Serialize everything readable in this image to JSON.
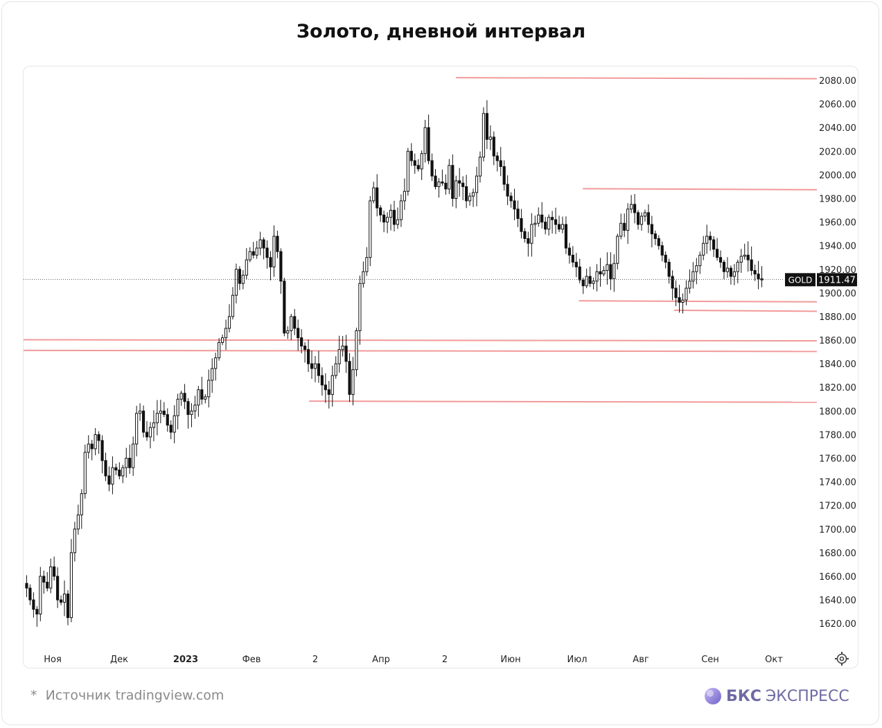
{
  "title": "Золото, дневной интервал",
  "footer": {
    "star": "*",
    "source": "Источник tradingview.com"
  },
  "brand": {
    "name_bold": "БКС",
    "name_light": "ЭКСПРЕСС"
  },
  "chart_data": {
    "type": "candlestick",
    "symbol": "GOLD",
    "last_price": "1911.47",
    "y_range": [
      1606,
      2090
    ],
    "y_ticks": [
      1620,
      1640,
      1660,
      1680,
      1700,
      1720,
      1740,
      1760,
      1780,
      1800,
      1820,
      1840,
      1860,
      1880,
      1900,
      1920,
      1940,
      1960,
      1980,
      2000,
      2020,
      2040,
      2060,
      2080
    ],
    "y_tick_labels": [
      "1620.00",
      "1640.00",
      "1660.00",
      "1680.00",
      "1700.00",
      "1720.00",
      "1740.00",
      "1760.00",
      "1780.00",
      "1800.00",
      "1820.00",
      "1840.00",
      "1860.00",
      "1880.00",
      "1900.00",
      "1920.00",
      "1940.00",
      "1960.00",
      "1980.00",
      "2000.00",
      "2020.00",
      "2040.00",
      "2060.00",
      "2080.00"
    ],
    "x_labels": [
      {
        "text": "Ноя",
        "bold": false
      },
      {
        "text": "Дек",
        "bold": false
      },
      {
        "text": "2023",
        "bold": true
      },
      {
        "text": "Фев",
        "bold": false
      },
      {
        "text": "2",
        "bold": false
      },
      {
        "text": "Апр",
        "bold": false
      },
      {
        "text": "2",
        "bold": false
      },
      {
        "text": "Июн",
        "bold": false
      },
      {
        "text": "Июл",
        "bold": false
      },
      {
        "text": "Авг",
        "bold": false
      },
      {
        "text": "Сен",
        "bold": false
      },
      {
        "text": "Окт",
        "bold": false
      }
    ],
    "close_path": [
      1650,
      1640,
      1632,
      1628,
      1660,
      1655,
      1650,
      1668,
      1660,
      1640,
      1638,
      1645,
      1625,
      1680,
      1700,
      1712,
      1730,
      1765,
      1772,
      1768,
      1780,
      1775,
      1758,
      1745,
      1738,
      1752,
      1750,
      1745,
      1752,
      1760,
      1752,
      1772,
      1798,
      1800,
      1782,
      1778,
      1786,
      1790,
      1798,
      1800,
      1797,
      1788,
      1782,
      1796,
      1810,
      1815,
      1808,
      1797,
      1800,
      1805,
      1818,
      1810,
      1812,
      1826,
      1836,
      1845,
      1858,
      1862,
      1870,
      1880,
      1898,
      1920,
      1908,
      1915,
      1928,
      1935,
      1932,
      1938,
      1945,
      1938,
      1930,
      1922,
      1948,
      1935,
      1910,
      1866,
      1868,
      1880,
      1870,
      1862,
      1855,
      1852,
      1840,
      1836,
      1840,
      1830,
      1822,
      1818,
      1814,
      1830,
      1840,
      1852,
      1855,
      1842,
      1814,
      1835,
      1868,
      1908,
      1918,
      1930,
      1978,
      1989,
      1972,
      1966,
      1960,
      1964,
      1970,
      1958,
      1962,
      1978,
      1986,
      2020,
      2012,
      2008,
      2005,
      2018,
      2040,
      2012,
      1999,
      1990,
      1994,
      1993,
      1988,
      2008,
      1980,
      1995,
      1993,
      1990,
      1978,
      1982,
      1985,
      1999,
      2015,
      2052,
      2030,
      2032,
      2016,
      2012,
      2007,
      1992,
      1982,
      1978,
      1971,
      1963,
      1952,
      1946,
      1942,
      1958,
      1959,
      1966,
      1960,
      1954,
      1964,
      1962,
      1958,
      1954,
      1958,
      1938,
      1932,
      1926,
      1922,
      1911,
      1906,
      1914,
      1908,
      1910,
      1918,
      1916,
      1919,
      1924,
      1912,
      1925,
      1948,
      1959,
      1953,
      1971,
      1975,
      1968,
      1958,
      1965,
      1968,
      1958,
      1950,
      1946,
      1940,
      1932,
      1926,
      1914,
      1904,
      1896,
      1892,
      1894,
      1904,
      1910,
      1918,
      1923,
      1932,
      1942,
      1948,
      1945,
      1937,
      1930,
      1926,
      1918,
      1921,
      1914,
      1918,
      1926,
      1931,
      1932,
      1928,
      1919,
      1916,
      1912,
      1911
    ]
  },
  "levels": [
    {
      "price": 2082,
      "from": 0.545
    },
    {
      "price": 1988,
      "from": 0.705
    },
    {
      "price": 1893,
      "from": 0.7
    },
    {
      "price": 1885,
      "from": 0.82
    },
    {
      "price": 1860,
      "from": 0.0
    },
    {
      "price": 1851,
      "from": 0.0
    },
    {
      "price": 1808,
      "from": 0.36
    }
  ],
  "colors": {
    "candle": "#111111",
    "level": "#f29999",
    "price_box": "#111111",
    "price_text": "#ffffff"
  }
}
